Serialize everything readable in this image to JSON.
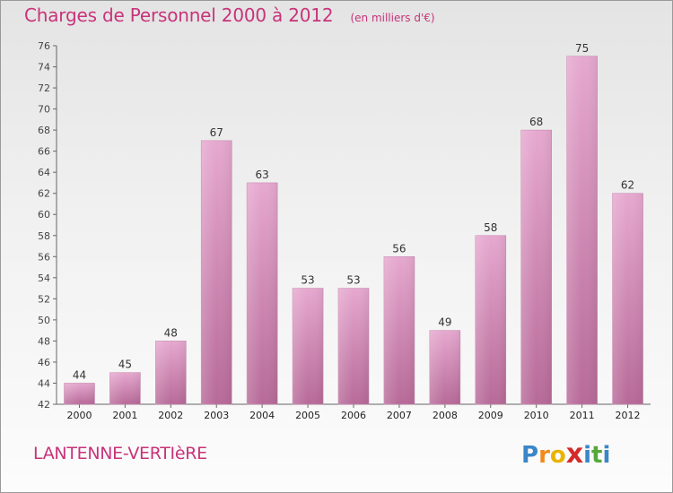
{
  "header": {
    "title": "Charges de Personnel 2000 à 2012",
    "subtitle": "(en milliers d'€)"
  },
  "footer": {
    "commune": "LANTENNE-VERTIèRE",
    "logo_letters": [
      "P",
      "r",
      "o",
      "x",
      "i",
      "t",
      "i"
    ],
    "logo_colors": [
      "#3a86c8",
      "#f08a1d",
      "#e8b400",
      "#d42a2a",
      "#3a86c8",
      "#55a83a",
      "#3a86c8"
    ]
  },
  "colors": {
    "bar_top": "#e6a8cf",
    "bar_bottom": "#b76a98",
    "title": "#c8337a"
  },
  "chart_data": {
    "type": "bar",
    "title": "Charges de Personnel 2000 à 2012",
    "subtitle": "(en milliers d'€)",
    "xlabel": "",
    "ylabel": "",
    "categories": [
      "2000",
      "2001",
      "2002",
      "2003",
      "2004",
      "2005",
      "2006",
      "2007",
      "2008",
      "2009",
      "2010",
      "2011",
      "2012"
    ],
    "values": [
      44,
      45,
      48,
      67,
      63,
      53,
      53,
      56,
      49,
      58,
      68,
      75,
      62
    ],
    "ylim": [
      42,
      76
    ],
    "yticks": [
      42,
      44,
      46,
      48,
      50,
      52,
      54,
      56,
      58,
      60,
      62,
      64,
      66,
      68,
      70,
      72,
      74,
      76
    ],
    "grid": false,
    "legend": "none"
  }
}
